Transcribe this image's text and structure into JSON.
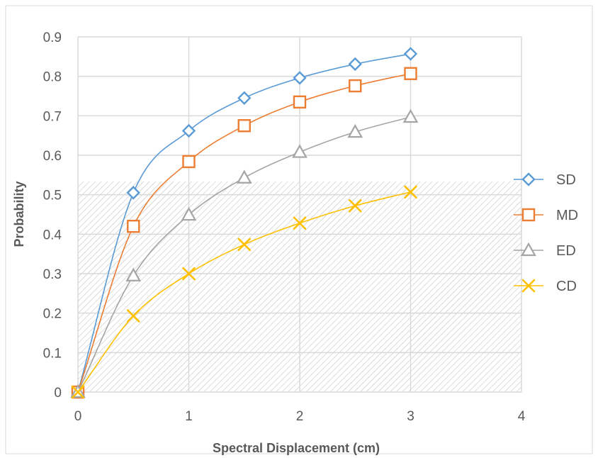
{
  "chart_data": {
    "type": "line",
    "title": "",
    "xlabel": "Spectral Displacement (cm)",
    "ylabel": "Probability",
    "xlim": [
      0,
      4
    ],
    "ylim": [
      0,
      0.9
    ],
    "xticks": [
      0,
      1,
      2,
      3,
      4
    ],
    "yticks": [
      0,
      0.1,
      0.2,
      0.3,
      0.4,
      0.5,
      0.6,
      0.7,
      0.8,
      0.9
    ],
    "x_tick_labels": [
      "0",
      "1",
      "2",
      "3",
      "4"
    ],
    "y_tick_labels": [
      "0",
      "0.1",
      "0.2",
      "0.3",
      "0.4",
      "0.5",
      "0.6",
      "0.7",
      "0.8",
      "0.9"
    ],
    "grid": true,
    "legend_position": "right",
    "x": [
      0,
      0.5,
      1,
      1.5,
      2,
      2.5,
      3
    ],
    "series": [
      {
        "name": "SD",
        "marker": "diamond",
        "color": "#5b9bd5",
        "values": [
          0,
          0.505,
          0.662,
          0.745,
          0.796,
          0.831,
          0.857
        ]
      },
      {
        "name": "MD",
        "marker": "square",
        "color": "#ed7d31",
        "values": [
          0,
          0.42,
          0.584,
          0.675,
          0.735,
          0.776,
          0.807
        ]
      },
      {
        "name": "ED",
        "marker": "triangle",
        "color": "#a5a5a5",
        "values": [
          0,
          0.295,
          0.449,
          0.543,
          0.608,
          0.659,
          0.697
        ]
      },
      {
        "name": "CD",
        "marker": "x",
        "color": "#ffc000",
        "values": [
          0,
          0.193,
          0.3,
          0.374,
          0.428,
          0.472,
          0.507
        ]
      }
    ]
  }
}
